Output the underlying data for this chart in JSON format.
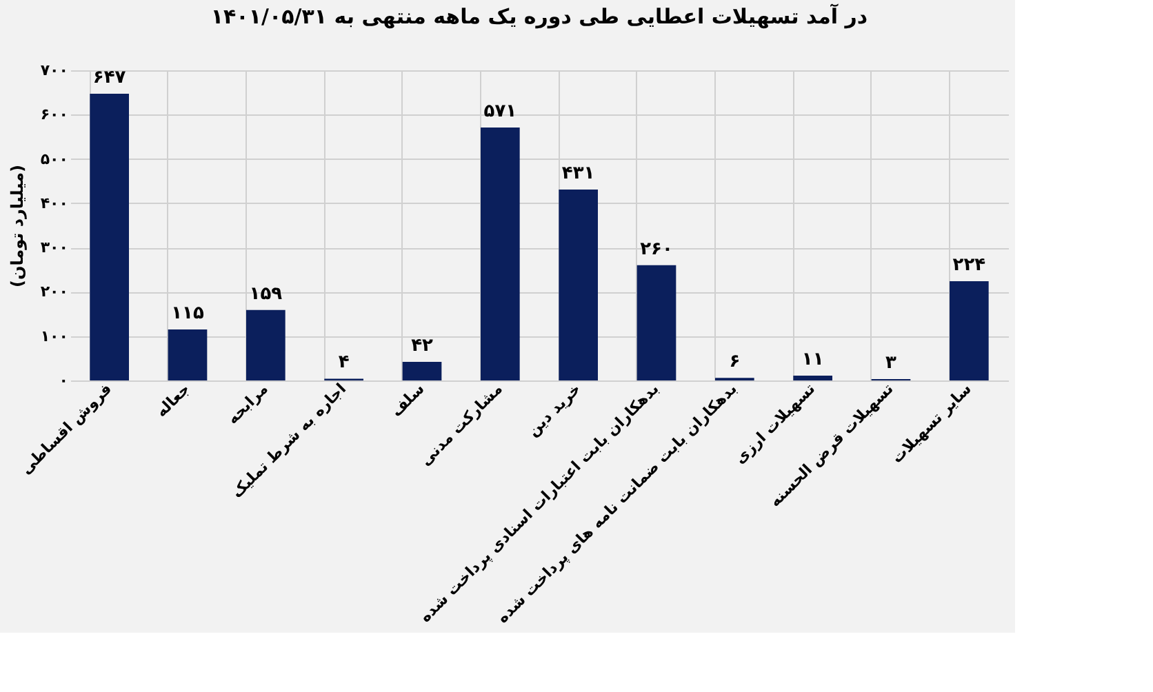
{
  "chart_data": {
    "type": "bar",
    "title": "در آمد تسهیلات اعطایی طی دوره یک ماهه منتهی به ۱۴۰۱/۰۵/۳۱",
    "ylabel": "(میلیارد تومان)",
    "categories": [
      "فروش اقساطی",
      "جعاله",
      "مرابحه",
      "اجاره به شرط تملیک",
      "سلف",
      "مشارکت مدنی",
      "خرید دین",
      "بدهکاران بابت اعتبارات اسنادی پرداخت شده",
      "بدهکاران بابت ضمانت نامه های پرداخت شده",
      "تسهیلات ارزی",
      "تسهیلات قرض الحسنه",
      "سایر تسهیلات"
    ],
    "values": [
      647,
      115,
      159,
      4,
      42,
      571,
      431,
      260,
      6,
      11,
      3,
      224
    ],
    "value_labels": [
      "۶۴۷",
      "۱۱۵",
      "۱۵۹",
      "۴",
      "۴۲",
      "۵۷۱",
      "۴۳۱",
      "۲۶۰",
      "۶",
      "۱۱",
      "۳",
      "۲۲۴"
    ],
    "color": "#0b1f5c",
    "ylim": [
      0,
      700
    ],
    "yticks": [
      {
        "value": 0,
        "label": "۰"
      },
      {
        "value": 100,
        "label": "۱۰۰"
      },
      {
        "value": 200,
        "label": "۲۰۰"
      },
      {
        "value": 300,
        "label": "۳۰۰"
      },
      {
        "value": 400,
        "label": "۴۰۰"
      },
      {
        "value": 500,
        "label": "۵۰۰"
      },
      {
        "value": 600,
        "label": "۶۰۰"
      },
      {
        "value": 700,
        "label": "۷۰۰"
      }
    ],
    "grid": true
  }
}
